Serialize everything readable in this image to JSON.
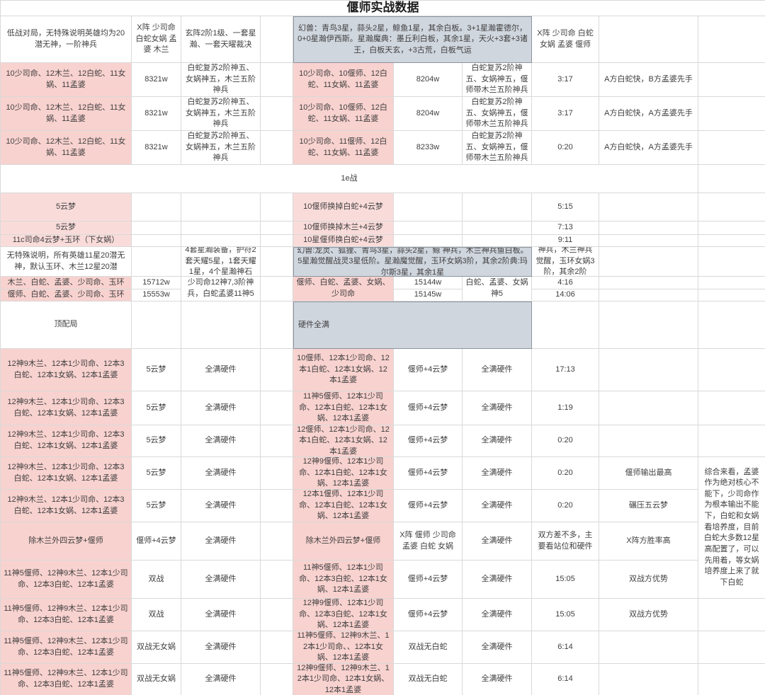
{
  "title": "偃师实战数据",
  "colors": {
    "pink": "#f8d2cf",
    "pink_light": "#f9dcda",
    "gray_panel": "#d0d6de",
    "gray_panel_border": "#8c949e",
    "grid_line": "#d9d9d9"
  },
  "grid": {
    "columns": [
      185,
      70,
      112,
      46,
      142,
      97,
      98,
      95,
      140,
      95
    ],
    "rows": [
      22,
      66,
      48,
      48,
      48,
      40,
      40,
      19,
      17,
      42,
      18,
      17,
      67,
      60,
      48,
      45,
      46,
      46,
      54,
      54,
      46,
      46,
      45
    ],
    "cells": [
      {
        "r": 1,
        "c": 1,
        "cs": 10,
        "t": "偃师实战数据",
        "s": "title",
        "n": "sheet-title"
      },
      {
        "r": 2,
        "c": 1,
        "t": "低战对局，无特殊说明英雄均为20潜无神，一阶神兵"
      },
      {
        "r": 2,
        "c": 2,
        "t": "X阵 少司命 白蛇女娲 孟婆 木兰"
      },
      {
        "r": 2,
        "c": 3,
        "t": "玄阵2阶1级、一套星瀚、一套天曜裁决"
      },
      {
        "r": 2,
        "c": 4,
        "t": ""
      },
      {
        "r": 2,
        "c": 5,
        "cs": 3,
        "s": "gray",
        "t": "幻兽：青鸟3星，蒜头2星，鲸鱼1星，其余白板。3+1星瀚霍德尔，0+0星瀚伊西斯。星瀚魔典：墨丘利白板，其余1星，天火+3套+3诸王，白板天玄，+3古荒，白板气运",
        "n": "note-panel-top"
      },
      {
        "r": 2,
        "c": 8,
        "t": "X阵 少司命 白蛇 女娲 孟婆 偃师"
      },
      {
        "r": 2,
        "c": 9,
        "t": ""
      },
      {
        "r": 2,
        "c": 10,
        "t": ""
      },
      {
        "r": 3,
        "c": 1,
        "s": "pink",
        "t": "10少司命、12木兰、12白蛇、11女娲、11孟婆"
      },
      {
        "r": 3,
        "c": 2,
        "t": "8321w"
      },
      {
        "r": 3,
        "c": 3,
        "t": "白蛇复苏2阶神五、女娲神五，木兰五阶神兵"
      },
      {
        "r": 3,
        "c": 4,
        "t": ""
      },
      {
        "r": 3,
        "c": 5,
        "s": "pink",
        "t": "10少司命、10偃师、12白蛇、11女娲、11孟婆"
      },
      {
        "r": 3,
        "c": 6,
        "t": "8204w"
      },
      {
        "r": 3,
        "c": 7,
        "t": "白蛇复苏2阶神五、女娲神五，偃师带木兰五阶神兵"
      },
      {
        "r": 3,
        "c": 8,
        "t": "3:17"
      },
      {
        "r": 3,
        "c": 9,
        "t": "A方白蛇快，B方孟婆先手"
      },
      {
        "r": 3,
        "c": 10,
        "t": ""
      },
      {
        "r": 4,
        "c": 1,
        "s": "pink",
        "t": "10少司命、12木兰、12白蛇、11女娲、11孟婆"
      },
      {
        "r": 4,
        "c": 2,
        "t": "8321w"
      },
      {
        "r": 4,
        "c": 3,
        "t": "白蛇复苏2阶神五、女娲神五，木兰五阶神兵"
      },
      {
        "r": 4,
        "c": 4,
        "t": ""
      },
      {
        "r": 4,
        "c": 5,
        "s": "pink",
        "t": "10少司命、10偃师、12白蛇、11女娲、11孟婆"
      },
      {
        "r": 4,
        "c": 6,
        "t": "8204w"
      },
      {
        "r": 4,
        "c": 7,
        "t": "白蛇复苏2阶神五、女娲神五，偃师带木兰五阶神兵"
      },
      {
        "r": 4,
        "c": 8,
        "t": "3:17"
      },
      {
        "r": 4,
        "c": 9,
        "t": "A方白蛇快，A方孟婆先手"
      },
      {
        "r": 4,
        "c": 10,
        "t": ""
      },
      {
        "r": 5,
        "c": 1,
        "s": "pink",
        "t": "10少司命、12木兰、12白蛇、11女娲、11孟婆"
      },
      {
        "r": 5,
        "c": 2,
        "t": "8321w"
      },
      {
        "r": 5,
        "c": 3,
        "t": "白蛇复苏2阶神五、女娲神五，木兰五阶神兵"
      },
      {
        "r": 5,
        "c": 4,
        "t": ""
      },
      {
        "r": 5,
        "c": 5,
        "s": "pink",
        "t": "10少司命、11偃师、12白蛇、11女娲、11孟婆"
      },
      {
        "r": 5,
        "c": 6,
        "t": "8233w"
      },
      {
        "r": 5,
        "c": 7,
        "t": "白蛇复苏2阶神五、女娲神五，偃师带木兰五阶神兵"
      },
      {
        "r": 5,
        "c": 8,
        "t": "0:20"
      },
      {
        "r": 5,
        "c": 9,
        "t": "A方白蛇快，A方孟婆先手"
      },
      {
        "r": 5,
        "c": 10,
        "t": ""
      },
      {
        "r": 6,
        "c": 1,
        "cs": 9,
        "t": "1e战",
        "n": "section-label-1e"
      },
      {
        "r": 6,
        "c": 10,
        "t": ""
      },
      {
        "r": 7,
        "c": 1,
        "s": "pink2",
        "t": "5云梦"
      },
      {
        "r": 7,
        "c": 2,
        "t": ""
      },
      {
        "r": 7,
        "c": 3,
        "t": ""
      },
      {
        "r": 7,
        "c": 4,
        "t": ""
      },
      {
        "r": 7,
        "c": 5,
        "s": "pink2",
        "t": "10偃师换掉白蛇+4云梦"
      },
      {
        "r": 7,
        "c": 6,
        "t": ""
      },
      {
        "r": 7,
        "c": 7,
        "t": ""
      },
      {
        "r": 7,
        "c": 8,
        "t": "5:15"
      },
      {
        "r": 7,
        "c": 9,
        "t": ""
      },
      {
        "r": 7,
        "c": 10,
        "t": ""
      },
      {
        "r": 8,
        "c": 1,
        "s": "pink2",
        "t": "5云梦"
      },
      {
        "r": 8,
        "c": 2,
        "t": ""
      },
      {
        "r": 8,
        "c": 3,
        "t": ""
      },
      {
        "r": 8,
        "c": 4,
        "t": ""
      },
      {
        "r": 8,
        "c": 5,
        "s": "pink2",
        "t": "10偃师换掉木兰+4云梦"
      },
      {
        "r": 8,
        "c": 6,
        "t": ""
      },
      {
        "r": 8,
        "c": 7,
        "t": ""
      },
      {
        "r": 8,
        "c": 8,
        "t": "7:13"
      },
      {
        "r": 8,
        "c": 9,
        "t": ""
      },
      {
        "r": 8,
        "c": 10,
        "t": ""
      },
      {
        "r": 9,
        "c": 1,
        "s": "pink2",
        "t": "11c司命4云梦+玉环（下女娲）"
      },
      {
        "r": 9,
        "c": 2,
        "t": ""
      },
      {
        "r": 9,
        "c": 3,
        "t": ""
      },
      {
        "r": 9,
        "c": 4,
        "t": ""
      },
      {
        "r": 9,
        "c": 5,
        "s": "pink2",
        "t": "10星偃师换白蛇+4云梦"
      },
      {
        "r": 9,
        "c": 6,
        "t": ""
      },
      {
        "r": 9,
        "c": 7,
        "t": ""
      },
      {
        "r": 9,
        "c": 8,
        "t": "9:11"
      },
      {
        "r": 9,
        "c": 9,
        "t": ""
      },
      {
        "r": 9,
        "c": 10,
        "t": ""
      },
      {
        "r": 10,
        "c": 1,
        "t": "无特殊说明，所有英雄11星20潜无神，默认玉环、木兰12星20潜"
      },
      {
        "r": 10,
        "c": 2,
        "t": ""
      },
      {
        "r": 10,
        "c": 3,
        "t": "4套星瀚装备，护符2套天耀5星，1套天耀1星，4个星瀚神石"
      },
      {
        "r": 10,
        "c": 4,
        "t": ""
      },
      {
        "r": 10,
        "c": 5,
        "cs": 3,
        "s": "gray",
        "t": "幻兽:龙灵、狐狸、青鸟3星，蒜头2星，鲸 神兵，木兰神兵鱼白板。5星瀚觉醒战灵3星低阶。星瀚魔觉醒，玉环女娲3阶，其余2阶典:玛尔斯3星，其余1星",
        "n": "note-panel-mid"
      },
      {
        "r": 10,
        "c": 8,
        "t": "神兵，木兰神兵觉醒，玉环女娲3阶，其余2阶"
      },
      {
        "r": 10,
        "c": 9,
        "t": ""
      },
      {
        "r": 10,
        "c": 10,
        "t": ""
      },
      {
        "r": 11,
        "c": 1,
        "s": "pink",
        "t": "木兰、白蛇、孟婆、少司命、玉环"
      },
      {
        "r": 11,
        "c": 2,
        "t": "15712w"
      },
      {
        "r": 11,
        "c": 3,
        "rs": 2,
        "t": "少司命12神7,3阶神兵，白蛇孟婆11神5"
      },
      {
        "r": 11,
        "c": 4,
        "rs": 2,
        "t": ""
      },
      {
        "r": 11,
        "c": 5,
        "rs": 2,
        "s": "pink",
        "t": "偃师、白蛇、孟婆、女娲、少司命"
      },
      {
        "r": 11,
        "c": 6,
        "t": "15144w"
      },
      {
        "r": 11,
        "c": 7,
        "rs": 2,
        "t": "白蛇、孟婆、女娲神5"
      },
      {
        "r": 11,
        "c": 8,
        "t": "4:16"
      },
      {
        "r": 11,
        "c": 9,
        "t": ""
      },
      {
        "r": 11,
        "c": 10,
        "t": ""
      },
      {
        "r": 12,
        "c": 1,
        "s": "pink",
        "t": "偃师、白蛇、孟婆、少司命、玉环"
      },
      {
        "r": 12,
        "c": 2,
        "t": "15553w"
      },
      {
        "r": 12,
        "c": 6,
        "t": "15145w"
      },
      {
        "r": 12,
        "c": 8,
        "t": "14:06"
      },
      {
        "r": 12,
        "c": 9,
        "t": ""
      },
      {
        "r": 12,
        "c": 10,
        "t": ""
      },
      {
        "r": 13,
        "c": 1,
        "t": "顶配局",
        "n": "section-label-top-config"
      },
      {
        "r": 13,
        "c": 2,
        "t": ""
      },
      {
        "r": 13,
        "c": 3,
        "t": ""
      },
      {
        "r": 13,
        "c": 4,
        "t": ""
      },
      {
        "r": 13,
        "c": 5,
        "cs": 3,
        "s": "gray left",
        "t": "硬件全满",
        "n": "note-panel-hardware"
      },
      {
        "r": 13,
        "c": 8,
        "t": ""
      },
      {
        "r": 13,
        "c": 9,
        "t": ""
      },
      {
        "r": 13,
        "c": 10,
        "t": ""
      },
      {
        "r": 14,
        "c": 1,
        "s": "pink",
        "t": "12神9木兰、12本1少司命、12本3白蛇、12本1女娲、12本1孟婆"
      },
      {
        "r": 14,
        "c": 2,
        "t": "5云梦"
      },
      {
        "r": 14,
        "c": 3,
        "t": "全满硬件"
      },
      {
        "r": 14,
        "c": 4,
        "t": ""
      },
      {
        "r": 14,
        "c": 5,
        "s": "pink",
        "t": "10偃师、12本1少司命、12本1白蛇、12本1女娲、12本1孟婆"
      },
      {
        "r": 14,
        "c": 6,
        "t": "偃师+4云梦"
      },
      {
        "r": 14,
        "c": 7,
        "t": "全满硬件"
      },
      {
        "r": 14,
        "c": 8,
        "t": "17:13"
      },
      {
        "r": 14,
        "c": 9,
        "t": ""
      },
      {
        "r": 14,
        "c": 10,
        "t": ""
      },
      {
        "r": 15,
        "c": 1,
        "s": "pink",
        "t": "12神9木兰、12本1少司命、12本3白蛇、12本1女娲、12本1孟婆"
      },
      {
        "r": 15,
        "c": 2,
        "t": "5云梦"
      },
      {
        "r": 15,
        "c": 3,
        "t": "全满硬件"
      },
      {
        "r": 15,
        "c": 4,
        "t": ""
      },
      {
        "r": 15,
        "c": 5,
        "s": "pink",
        "t": "11神5偃师、12本1少司命、12本1白蛇、12本1女娲、12本1孟婆"
      },
      {
        "r": 15,
        "c": 6,
        "t": "偃师+4云梦"
      },
      {
        "r": 15,
        "c": 7,
        "t": "全满硬件"
      },
      {
        "r": 15,
        "c": 8,
        "t": "1:19"
      },
      {
        "r": 15,
        "c": 9,
        "t": ""
      },
      {
        "r": 15,
        "c": 10,
        "t": ""
      },
      {
        "r": 16,
        "c": 1,
        "s": "pink",
        "t": "12神9木兰、12本1少司命、12本3白蛇、12本1女娲、12本1孟婆"
      },
      {
        "r": 16,
        "c": 2,
        "t": "5云梦"
      },
      {
        "r": 16,
        "c": 3,
        "t": "全满硬件"
      },
      {
        "r": 16,
        "c": 4,
        "t": ""
      },
      {
        "r": 16,
        "c": 5,
        "s": "pink",
        "t": "12偃师、12本1少司命、12本1白蛇、12本1女娲、12本1孟婆"
      },
      {
        "r": 16,
        "c": 6,
        "t": "偃师+4云梦"
      },
      {
        "r": 16,
        "c": 7,
        "t": "全满硬件"
      },
      {
        "r": 16,
        "c": 8,
        "t": "0:20"
      },
      {
        "r": 16,
        "c": 9,
        "t": ""
      },
      {
        "r": 16,
        "c": 10,
        "t": ""
      },
      {
        "r": 17,
        "c": 1,
        "s": "pink",
        "t": "12神9木兰、12本1少司命、12本3白蛇、12本1女娲、12本1孟婆"
      },
      {
        "r": 17,
        "c": 2,
        "t": "5云梦"
      },
      {
        "r": 17,
        "c": 3,
        "t": "全满硬件"
      },
      {
        "r": 17,
        "c": 4,
        "t": ""
      },
      {
        "r": 17,
        "c": 5,
        "s": "pink",
        "t": "12神9偃师、12本1少司命、12本1白蛇、12本1女娲、12本1孟婆"
      },
      {
        "r": 17,
        "c": 6,
        "t": "偃师+4云梦"
      },
      {
        "r": 17,
        "c": 7,
        "t": "全满硬件"
      },
      {
        "r": 17,
        "c": 8,
        "t": "0:20"
      },
      {
        "r": 17,
        "c": 9,
        "t": "偃师输出最高"
      },
      {
        "r": 17,
        "c": 10,
        "rs": 4,
        "t": "综合来看，孟婆作为绝对核心不能下，少司命作为根本输出不能下，白蛇和女娲看培养度，目前白蛇大多数12星高配置了，可以先用着，等女娲培养度上来了就下白蛇",
        "n": "conclusion-note"
      },
      {
        "r": 18,
        "c": 1,
        "s": "pink",
        "t": "12神9木兰、12本1少司命、12本3白蛇、12本1女娲、12本1孟婆"
      },
      {
        "r": 18,
        "c": 2,
        "t": "5云梦"
      },
      {
        "r": 18,
        "c": 3,
        "t": "全满硬件"
      },
      {
        "r": 18,
        "c": 4,
        "t": ""
      },
      {
        "r": 18,
        "c": 5,
        "s": "pink",
        "t": "12本1偃师、12本1少司命、12本1白蛇、12本1女娲、12本1孟婆"
      },
      {
        "r": 18,
        "c": 6,
        "t": "偃师+4云梦"
      },
      {
        "r": 18,
        "c": 7,
        "t": "全满硬件"
      },
      {
        "r": 18,
        "c": 8,
        "t": "0:20"
      },
      {
        "r": 18,
        "c": 9,
        "t": "碾压五云梦"
      },
      {
        "r": 19,
        "c": 1,
        "s": "pink",
        "t": "除木兰外四云梦+偃师"
      },
      {
        "r": 19,
        "c": 2,
        "t": "偃师+4云梦"
      },
      {
        "r": 19,
        "c": 3,
        "t": "全满硬件"
      },
      {
        "r": 19,
        "c": 4,
        "t": ""
      },
      {
        "r": 19,
        "c": 5,
        "s": "pink",
        "t": "除木兰外四云梦+偃师"
      },
      {
        "r": 19,
        "c": 6,
        "t": "X阵 偃师 少司命 孟婆 白蛇 女娲"
      },
      {
        "r": 19,
        "c": 7,
        "t": "全满硬件"
      },
      {
        "r": 19,
        "c": 8,
        "t": "双方差不多，主要看站位和硬件"
      },
      {
        "r": 19,
        "c": 9,
        "t": "X阵方胜率高"
      },
      {
        "r": 20,
        "c": 1,
        "s": "pink",
        "t": "11神5偃师、12神9木兰、12本1少司命、12本3白蛇、12本1孟婆"
      },
      {
        "r": 20,
        "c": 2,
        "t": "双战"
      },
      {
        "r": 20,
        "c": 3,
        "t": "全满硬件"
      },
      {
        "r": 20,
        "c": 4,
        "t": ""
      },
      {
        "r": 20,
        "c": 5,
        "s": "pink",
        "t": "11神5偃师、12本1少司命、12本3白蛇、12本1女娲、12本1孟婆"
      },
      {
        "r": 20,
        "c": 6,
        "t": "偃师+4云梦"
      },
      {
        "r": 20,
        "c": 7,
        "t": "全满硬件"
      },
      {
        "r": 20,
        "c": 8,
        "t": "15:05"
      },
      {
        "r": 20,
        "c": 9,
        "t": "双战方优势"
      },
      {
        "r": 21,
        "c": 1,
        "s": "pink",
        "t": "11神5偃师、12神9木兰、12本1少司命、12本3白蛇、12本1孟婆"
      },
      {
        "r": 21,
        "c": 2,
        "t": "双战"
      },
      {
        "r": 21,
        "c": 3,
        "t": "全满硬件"
      },
      {
        "r": 21,
        "c": 4,
        "t": ""
      },
      {
        "r": 21,
        "c": 5,
        "s": "pink",
        "t": "12神9偃师、12本1少司命、12本3白蛇、12本1女娲、12本1孟婆"
      },
      {
        "r": 21,
        "c": 6,
        "t": "偃师+4云梦"
      },
      {
        "r": 21,
        "c": 7,
        "t": "全满硬件"
      },
      {
        "r": 21,
        "c": 8,
        "t": "15:05"
      },
      {
        "r": 21,
        "c": 9,
        "t": "双战方优势"
      },
      {
        "r": 21,
        "c": 10,
        "t": ""
      },
      {
        "r": 22,
        "c": 1,
        "s": "pink",
        "t": "11神5偃师、12神9木兰、12本1少司命、12本3白蛇、12本1孟婆"
      },
      {
        "r": 22,
        "c": 2,
        "t": "双战无女娲"
      },
      {
        "r": 22,
        "c": 3,
        "t": "全满硬件"
      },
      {
        "r": 22,
        "c": 4,
        "t": ""
      },
      {
        "r": 22,
        "c": 5,
        "s": "pink",
        "t": "11神5偃师、12神9木兰、12本1少司命、、12本1女娲、12本1孟婆"
      },
      {
        "r": 22,
        "c": 6,
        "t": "双战无白蛇"
      },
      {
        "r": 22,
        "c": 7,
        "t": "全满硬件"
      },
      {
        "r": 22,
        "c": 8,
        "t": "6:14"
      },
      {
        "r": 22,
        "c": 9,
        "t": ""
      },
      {
        "r": 22,
        "c": 10,
        "t": ""
      },
      {
        "r": 23,
        "c": 1,
        "s": "pink",
        "t": "11神5偃师、12神9木兰、12本1少司命、12本3白蛇、12本1孟婆"
      },
      {
        "r": 23,
        "c": 2,
        "t": "双战无女娲"
      },
      {
        "r": 23,
        "c": 3,
        "t": "全满硬件"
      },
      {
        "r": 23,
        "c": 4,
        "t": ""
      },
      {
        "r": 23,
        "c": 5,
        "s": "pink",
        "t": "12神9偃师、12神9木兰、12本1少司命、12本1女娲、12本1孟婆"
      },
      {
        "r": 23,
        "c": 6,
        "t": "双战无白蛇"
      },
      {
        "r": 23,
        "c": 7,
        "t": "全满硬件"
      },
      {
        "r": 23,
        "c": 8,
        "t": "6:14"
      },
      {
        "r": 23,
        "c": 9,
        "t": ""
      },
      {
        "r": 23,
        "c": 10,
        "t": ""
      }
    ]
  }
}
